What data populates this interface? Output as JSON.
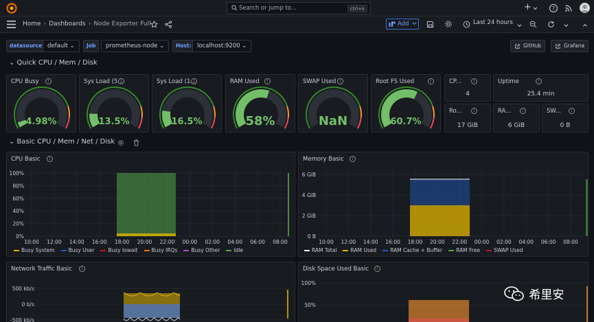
{
  "topbar": {
    "search_placeholder": "Search or jump to...",
    "search_shortcut": "ctrl+k",
    "plus_label": "+"
  },
  "navbar": {
    "breadcrumbs": [
      "Home",
      "Dashboards",
      "Node Exporter Full"
    ],
    "add_label": "Add",
    "time_range": "Last 24 hours"
  },
  "variables": {
    "datasource": {
      "label": "datasource",
      "value": "default"
    },
    "job": {
      "label": "Job",
      "value": "prometheus-node"
    },
    "host": {
      "label": "Host:",
      "value": "localhost:9200"
    },
    "links": [
      "GitHub",
      "Grafana"
    ]
  },
  "rows": {
    "quick": "Quick CPU / Mem / Disk",
    "basic": "Basic CPU / Mem / Net / Disk"
  },
  "gauges": [
    {
      "title": "CPU Busy",
      "value": "4.98%",
      "fraction": 0.05,
      "color": "#37872d",
      "text_color": "#73bf69"
    },
    {
      "title": "Sys Load (5...",
      "value": "13.5%",
      "fraction": 0.135,
      "color": "#37872d",
      "text_color": "#73bf69"
    },
    {
      "title": "Sys Load (1...",
      "value": "16.5%",
      "fraction": 0.165,
      "color": "#37872d",
      "text_color": "#73bf69"
    },
    {
      "title": "RAM Used",
      "value": "58%",
      "fraction": 0.58,
      "color": "#37872d",
      "text_color": "#73bf69"
    },
    {
      "title": "SWAP Used",
      "value": "NaN",
      "fraction": 0,
      "color": "#37872d",
      "text_color": "#73bf69"
    },
    {
      "title": "Root FS Used",
      "value": "60.7%",
      "fraction": 0.607,
      "color": "#37872d",
      "text_color": "#73bf69"
    }
  ],
  "stats": [
    {
      "title": "CP...",
      "value": "4"
    },
    {
      "title": "Uptime",
      "value": "25.4 min"
    },
    {
      "title": "Ro...",
      "value": "17 GiB"
    },
    {
      "title": "RA...",
      "value": "6 GiB"
    },
    {
      "title": "SW...",
      "value": "0 B"
    }
  ],
  "cpu_basic": {
    "title": "CPU Basic",
    "y_ticks": [
      "100%",
      "80%",
      "60%",
      "40%",
      "20%",
      "0%"
    ],
    "x_ticks": [
      "10:00",
      "12:00",
      "14:00",
      "16:00",
      "18:00",
      "20:00",
      "22:00",
      "00:00",
      "02:00",
      "04:00",
      "06:00",
      "08:00"
    ],
    "legend": [
      {
        "name": "Busy System",
        "color": "#e0b400"
      },
      {
        "name": "Busy User",
        "color": "#1f60c4"
      },
      {
        "name": "Busy Iowait",
        "color": "#c4162a"
      },
      {
        "name": "Busy IRQs",
        "color": "#ff780a"
      },
      {
        "name": "Busy Other",
        "color": "#a352cc"
      },
      {
        "name": "Idle",
        "color": "#56a64b"
      }
    ]
  },
  "memory_basic": {
    "title": "Memory Basic",
    "y_ticks": [
      "6 GiB",
      "4 GiB",
      "2 GiB",
      "0 B"
    ],
    "x_ticks": [
      "10:00",
      "12:00",
      "14:00",
      "16:00",
      "18:00",
      "20:00",
      "22:00",
      "00:00",
      "02:00",
      "04:00",
      "06:00",
      "08:00"
    ],
    "legend": [
      {
        "name": "RAM Total",
        "color": "#ffffff"
      },
      {
        "name": "RAM Used",
        "color": "#e0b400"
      },
      {
        "name": "RAM Cache + Buffer",
        "color": "#1f60c4"
      },
      {
        "name": "RAM Free",
        "color": "#56a64b"
      },
      {
        "name": "SWAP Used",
        "color": "#c4162a"
      }
    ]
  },
  "network_basic": {
    "title": "Network Traffic Basic",
    "y_ticks": [
      "500 kb/s",
      "0 b/s",
      "-500 kb/s"
    ]
  },
  "disk_basic": {
    "title": "Disk Space Used Basic",
    "y_ticks": [
      "100%",
      "50%"
    ]
  },
  "watermark": "希里安"
}
